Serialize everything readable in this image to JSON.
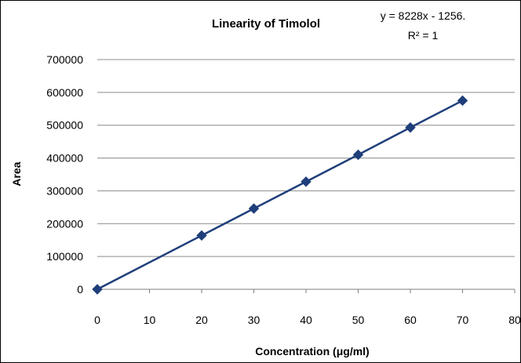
{
  "chart_data": {
    "type": "scatter",
    "title": "Linearity of Timolol",
    "xlabel": "Concentration (μg/ml)",
    "ylabel": "Area",
    "xlim": [
      0,
      80
    ],
    "ylim": [
      0,
      700000
    ],
    "x_ticks": [
      "0",
      "10",
      "20",
      "30",
      "40",
      "50",
      "60",
      "70",
      "80"
    ],
    "y_ticks": [
      "0",
      "100000",
      "200000",
      "300000",
      "400000",
      "500000",
      "600000",
      "700000"
    ],
    "grid": "horizontal",
    "legend": "none",
    "marker": "diamond",
    "series": [
      {
        "x": [
          0,
          20,
          30,
          40,
          50,
          60,
          70
        ],
        "y": [
          0,
          164000,
          246000,
          328000,
          410000,
          493000,
          575000
        ]
      }
    ],
    "trendline": {
      "equation": "y = 8228x - 1256.",
      "r_squared": "R² = 1"
    },
    "colors": {
      "series": "#1f3f7a",
      "grid": "#8c8c8c",
      "axis": "#7f7f7f"
    }
  }
}
